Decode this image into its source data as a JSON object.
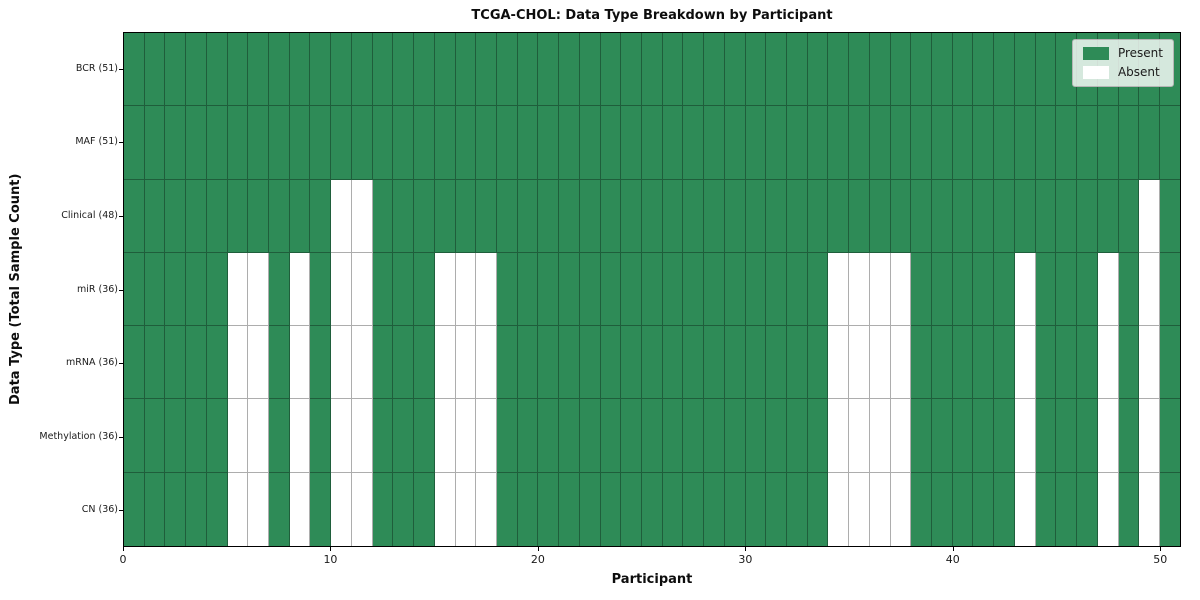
{
  "title": "TCGA-CHOL: Data Type Breakdown by Participant",
  "axes": {
    "x_label": "Participant",
    "y_label": "Data Type (Total Sample Count)",
    "x_tick_labels": [
      "0",
      "10",
      "20",
      "30",
      "40",
      "50"
    ]
  },
  "legend": {
    "items": [
      {
        "label": "Present",
        "color": "#2e8b57"
      },
      {
        "label": "Absent",
        "color": "#ffffff"
      }
    ]
  },
  "colors": {
    "present": "#2e8b57",
    "absent": "#ffffff",
    "grid_line": "rgba(0,0,0,0.32)",
    "axis": "#000000",
    "legend_bg": "rgba(255,255,255,0.8)",
    "legend_border": "#b5b5b5"
  },
  "chart_data": {
    "type": "heatmap",
    "title": "TCGA-CHOL: Data Type Breakdown by Participant",
    "xlabel": "Participant",
    "ylabel": "Data Type (Total Sample Count)",
    "x_range": [
      0,
      51
    ],
    "x_ticks": [
      0,
      10,
      20,
      30,
      40,
      50
    ],
    "n_participants": 51,
    "grid": true,
    "legend_position": "upper right",
    "cell_states": {
      "present": "#2e8b57",
      "absent": "#ffffff"
    },
    "rows": [
      {
        "label": "BCR (51)",
        "data_type": "BCR",
        "present_count": 51,
        "absent_participants": []
      },
      {
        "label": "MAF (51)",
        "data_type": "MAF",
        "present_count": 51,
        "absent_participants": []
      },
      {
        "label": "Clinical (48)",
        "data_type": "Clinical",
        "present_count": 48,
        "absent_participants": [
          10,
          11,
          49
        ]
      },
      {
        "label": "miR (36)",
        "data_type": "miR",
        "present_count": 36,
        "absent_participants": [
          5,
          6,
          8,
          10,
          11,
          15,
          16,
          17,
          34,
          35,
          36,
          37,
          43,
          47,
          49
        ]
      },
      {
        "label": "mRNA (36)",
        "data_type": "mRNA",
        "present_count": 36,
        "absent_participants": [
          5,
          6,
          8,
          10,
          11,
          15,
          16,
          17,
          34,
          35,
          36,
          37,
          43,
          47,
          49
        ]
      },
      {
        "label": "Methylation (36)",
        "data_type": "Methylation",
        "present_count": 36,
        "absent_participants": [
          5,
          6,
          8,
          10,
          11,
          15,
          16,
          17,
          34,
          35,
          36,
          37,
          43,
          47,
          49
        ]
      },
      {
        "label": "CN (36)",
        "data_type": "CN",
        "present_count": 36,
        "absent_participants": [
          5,
          6,
          8,
          10,
          11,
          15,
          16,
          17,
          34,
          35,
          36,
          37,
          43,
          47,
          49
        ]
      }
    ]
  }
}
